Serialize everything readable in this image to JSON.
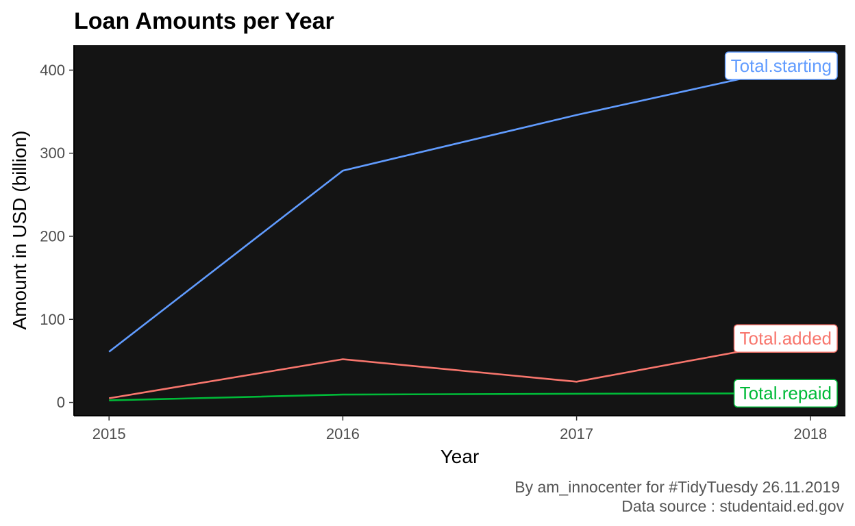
{
  "chart_data": {
    "type": "line",
    "title": "Loan Amounts per Year",
    "xlabel": "Year",
    "ylabel": "Amount in USD (billion)",
    "x": [
      2015,
      2016,
      2017,
      2018
    ],
    "xlim": [
      2014.85,
      2018.15
    ],
    "ylim": [
      -16,
      430
    ],
    "x_ticks": [
      2015,
      2016,
      2017,
      2018
    ],
    "y_ticks": [
      0,
      100,
      200,
      300,
      400
    ],
    "panel_background": "#141414",
    "grid": false,
    "legend": "direct labels at line ends",
    "series": [
      {
        "name": "Total.starting",
        "color": "#619cff",
        "values": [
          61,
          279,
          346,
          408
        ]
      },
      {
        "name": "Total.added",
        "color": "#f8766d",
        "values": [
          5,
          52,
          25,
          77
        ]
      },
      {
        "name": "Total.repaid",
        "color": "#00ba38",
        "values": [
          2.5,
          9.5,
          10.5,
          11
        ]
      }
    ],
    "caption_lines": [
      "By am_innocenter for #TidyTuesdy 26.11.2019",
      "Data source : studentaid.ed.gov"
    ]
  }
}
